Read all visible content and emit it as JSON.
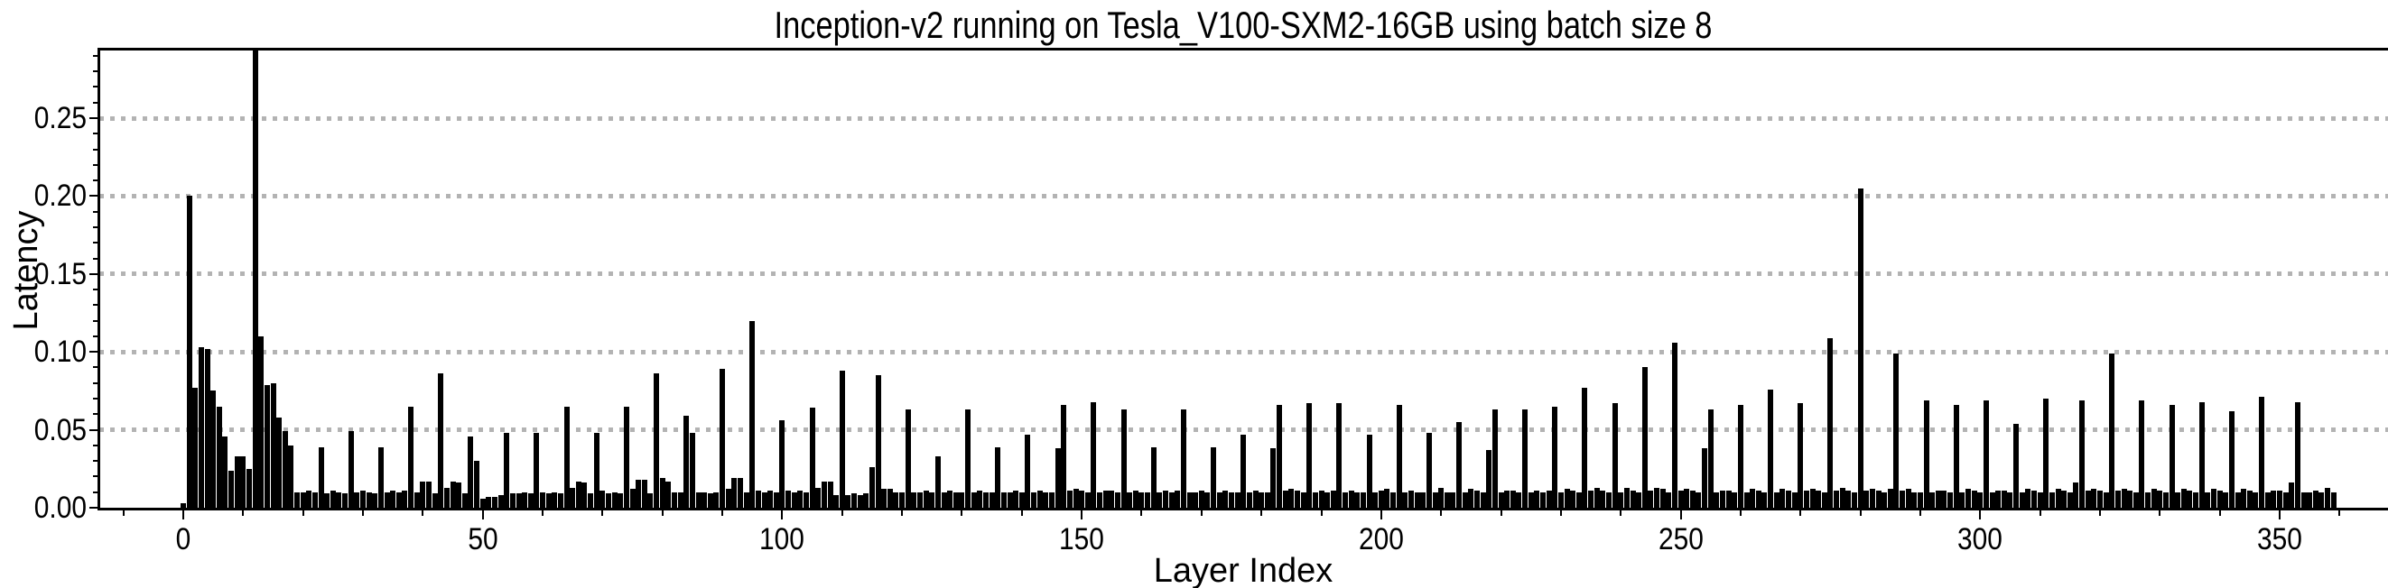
{
  "title": "Inception-v2 running on Tesla_V100-SXM2-16GB using batch size 8",
  "colors": {
    "bar": "#000000",
    "grid": "#b3b3b3",
    "axis": "#000000",
    "background": "#ffffff"
  },
  "chart_data": {
    "type": "bar",
    "title": "Inception-v2 running on Tesla_V100-SXM2-16GB using batch size 8",
    "xlabel": "Layer Index",
    "ylabel": "Latency",
    "x_start_index": 0,
    "ylim": [
      0,
      0.294
    ],
    "xlim": [
      -14,
      368
    ],
    "grid": "horizontal dotted gridlines at each labeled y tick",
    "legend": "none",
    "y_ticks": [
      0,
      0.05,
      0.1,
      0.15,
      0.2,
      0.25
    ],
    "y_tick_labels": [
      "0.00",
      "0.05",
      "0.10",
      "0.15",
      "0.20",
      "0.25"
    ],
    "y_minor_tick_step": 0.01,
    "y_minor_tick_max": 0.29,
    "x_ticks": [
      0,
      50,
      100,
      150,
      200,
      250,
      300,
      350
    ],
    "x_tick_labels": [
      "0",
      "50",
      "100",
      "150",
      "200",
      "250",
      "300",
      "350"
    ],
    "x_minor_tick_step": 10,
    "x_minor_tick_min": -10,
    "x_minor_tick_max": 360,
    "note": "bar at layer 12 is clipped by the top of the axes (value >= 0.295); latency per layer index, one black bar per layer",
    "values": [
      0.003,
      0.2,
      0.077,
      0.103,
      0.102,
      0.075,
      0.065,
      0.046,
      0.024,
      0.033,
      0.033,
      0.025,
      0.295,
      0.11,
      0.079,
      0.08,
      0.058,
      0.049,
      0.04,
      0.01,
      0.01,
      0.011,
      0.01,
      0.039,
      0.009,
      0.011,
      0.01,
      0.009,
      0.049,
      0.01,
      0.011,
      0.01,
      0.009,
      0.039,
      0.01,
      0.011,
      0.01,
      0.011,
      0.065,
      0.01,
      0.017,
      0.017,
      0.009,
      0.086,
      0.013,
      0.017,
      0.016,
      0.009,
      0.046,
      0.03,
      0.006,
      0.007,
      0.007,
      0.008,
      0.048,
      0.009,
      0.009,
      0.01,
      0.009,
      0.048,
      0.01,
      0.009,
      0.01,
      0.009,
      0.065,
      0.013,
      0.017,
      0.016,
      0.009,
      0.048,
      0.011,
      0.009,
      0.01,
      0.009,
      0.065,
      0.012,
      0.018,
      0.018,
      0.009,
      0.086,
      0.019,
      0.017,
      0.01,
      0.01,
      0.059,
      0.048,
      0.01,
      0.01,
      0.009,
      0.01,
      0.089,
      0.012,
      0.019,
      0.019,
      0.01,
      0.12,
      0.011,
      0.01,
      0.011,
      0.01,
      0.056,
      0.011,
      0.01,
      0.011,
      0.01,
      0.064,
      0.013,
      0.017,
      0.017,
      0.008,
      0.088,
      0.008,
      0.009,
      0.008,
      0.009,
      0.026,
      0.085,
      0.012,
      0.012,
      0.01,
      0.01,
      0.063,
      0.01,
      0.01,
      0.011,
      0.01,
      0.033,
      0.01,
      0.011,
      0.01,
      0.01,
      0.063,
      0.01,
      0.011,
      0.01,
      0.01,
      0.039,
      0.01,
      0.01,
      0.011,
      0.01,
      0.047,
      0.01,
      0.011,
      0.01,
      0.01,
      0.038,
      0.066,
      0.011,
      0.012,
      0.011,
      0.01,
      0.068,
      0.01,
      0.011,
      0.011,
      0.01,
      0.063,
      0.01,
      0.011,
      0.01,
      0.01,
      0.039,
      0.01,
      0.011,
      0.01,
      0.011,
      0.063,
      0.01,
      0.01,
      0.011,
      0.01,
      0.039,
      0.01,
      0.011,
      0.01,
      0.01,
      0.047,
      0.01,
      0.011,
      0.01,
      0.01,
      0.038,
      0.066,
      0.011,
      0.012,
      0.011,
      0.01,
      0.067,
      0.01,
      0.011,
      0.01,
      0.011,
      0.067,
      0.01,
      0.011,
      0.01,
      0.01,
      0.047,
      0.01,
      0.011,
      0.012,
      0.01,
      0.066,
      0.01,
      0.011,
      0.01,
      0.01,
      0.048,
      0.01,
      0.013,
      0.01,
      0.01,
      0.055,
      0.01,
      0.012,
      0.011,
      0.01,
      0.037,
      0.063,
      0.01,
      0.011,
      0.011,
      0.01,
      0.063,
      0.01,
      0.011,
      0.01,
      0.011,
      0.065,
      0.01,
      0.012,
      0.011,
      0.01,
      0.077,
      0.011,
      0.013,
      0.011,
      0.01,
      0.067,
      0.01,
      0.013,
      0.011,
      0.01,
      0.09,
      0.011,
      0.013,
      0.012,
      0.01,
      0.106,
      0.011,
      0.012,
      0.011,
      0.01,
      0.038,
      0.063,
      0.01,
      0.011,
      0.011,
      0.01,
      0.066,
      0.01,
      0.012,
      0.011,
      0.01,
      0.076,
      0.01,
      0.012,
      0.011,
      0.01,
      0.067,
      0.011,
      0.012,
      0.011,
      0.01,
      0.109,
      0.011,
      0.013,
      0.011,
      0.01,
      0.205,
      0.011,
      0.012,
      0.011,
      0.01,
      0.012,
      0.099,
      0.011,
      0.012,
      0.01,
      0.01,
      0.069,
      0.01,
      0.011,
      0.011,
      0.01,
      0.066,
      0.01,
      0.012,
      0.011,
      0.01,
      0.069,
      0.01,
      0.011,
      0.011,
      0.01,
      0.054,
      0.01,
      0.012,
      0.011,
      0.01,
      0.07,
      0.01,
      0.012,
      0.011,
      0.01,
      0.016,
      0.069,
      0.011,
      0.012,
      0.011,
      0.01,
      0.099,
      0.011,
      0.012,
      0.011,
      0.01,
      0.069,
      0.01,
      0.012,
      0.011,
      0.01,
      0.066,
      0.01,
      0.012,
      0.011,
      0.01,
      0.068,
      0.01,
      0.012,
      0.011,
      0.01,
      0.062,
      0.01,
      0.012,
      0.011,
      0.01,
      0.071,
      0.01,
      0.011,
      0.011,
      0.01,
      0.016,
      0.068,
      0.01,
      0.01,
      0.011,
      0.01,
      0.013,
      0.01
    ]
  }
}
